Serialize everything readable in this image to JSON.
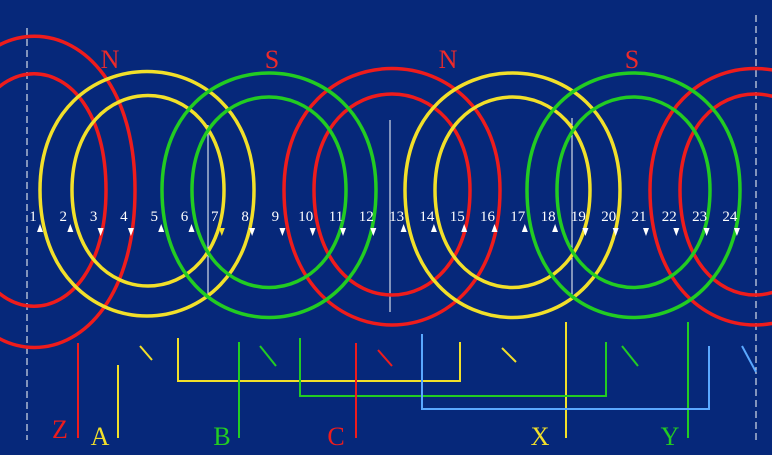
{
  "colors": {
    "background": "#06287a",
    "phase_a": "#f2e02a",
    "phase_b": "#22cc22",
    "phase_c": "#ee1c1c",
    "link": "#5aa8ff",
    "pole": "#ee2a2a",
    "white": "#ffffff"
  },
  "slots": [
    "1",
    "2",
    "3",
    "4",
    "5",
    "6",
    "7",
    "8",
    "9",
    "10",
    "11",
    "12",
    "13",
    "14",
    "15",
    "16",
    "17",
    "18",
    "19",
    "20",
    "21",
    "22",
    "23",
    "24"
  ],
  "poles": [
    "N",
    "S",
    "N",
    "S"
  ],
  "terminals": {
    "z": "Z",
    "a": "A",
    "b": "B",
    "c": "C",
    "x": "X",
    "y": "Y"
  }
}
